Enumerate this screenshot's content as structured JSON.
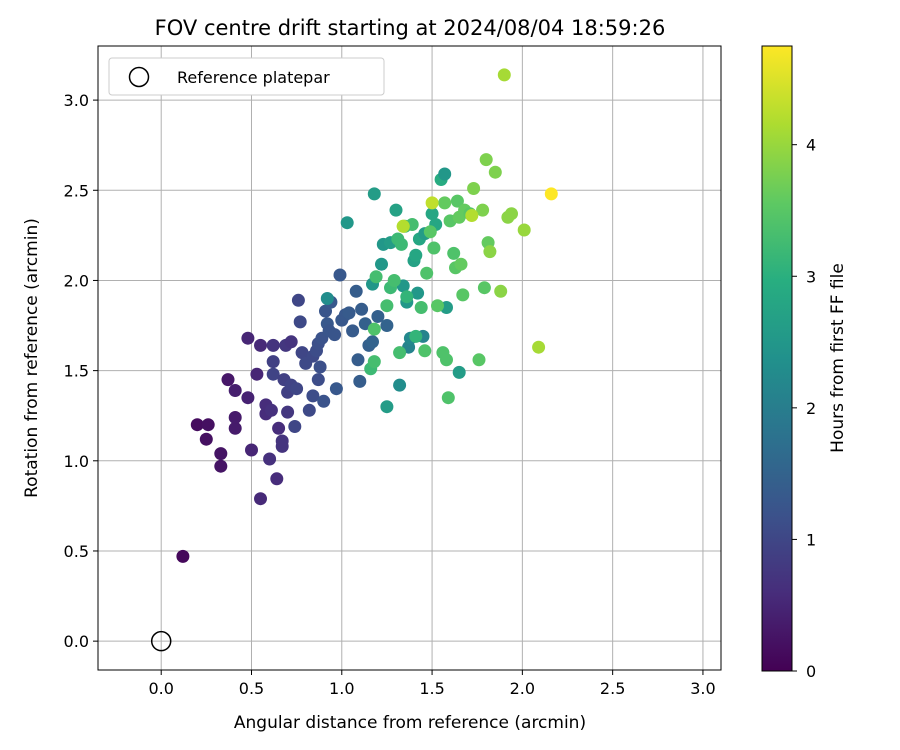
{
  "chart_data": {
    "type": "scatter",
    "title": "FOV centre drift starting at 2024/08/04 18:59:26",
    "xlabel": "Angular distance from reference (arcmin)",
    "ylabel": "Rotation from reference (arcmin)",
    "xlim": [
      -0.35,
      3.1
    ],
    "ylim": [
      -0.16,
      3.3
    ],
    "xticks": [
      "0.0",
      "0.5",
      "1.0",
      "1.5",
      "2.0",
      "2.5",
      "3.0"
    ],
    "yticks": [
      "0.0",
      "0.5",
      "1.0",
      "1.5",
      "2.0",
      "2.5",
      "3.0"
    ],
    "grid": true,
    "legend": {
      "label": "Reference platepar",
      "placement": "top-left"
    },
    "reference_point": [
      0.0,
      0.0
    ],
    "colorbar": {
      "label": "Hours from first FF file",
      "colormap": "viridis",
      "range": [
        0,
        4.75
      ],
      "ticks": [
        "0",
        "1",
        "2",
        "3",
        "4"
      ]
    },
    "points": [
      [
        0.12,
        0.47,
        0.1
      ],
      [
        0.2,
        1.2,
        0.15
      ],
      [
        0.25,
        1.12,
        0.2
      ],
      [
        0.26,
        1.2,
        0.2
      ],
      [
        0.33,
        0.97,
        0.25
      ],
      [
        0.33,
        1.04,
        0.25
      ],
      [
        0.37,
        1.45,
        0.3
      ],
      [
        0.41,
        1.18,
        0.35
      ],
      [
        0.41,
        1.24,
        0.35
      ],
      [
        0.41,
        1.39,
        0.4
      ],
      [
        0.48,
        1.68,
        0.5
      ],
      [
        0.48,
        1.35,
        0.45
      ],
      [
        0.5,
        1.06,
        0.5
      ],
      [
        0.53,
        1.48,
        0.5
      ],
      [
        0.55,
        0.79,
        0.55
      ],
      [
        0.55,
        1.64,
        0.55
      ],
      [
        0.58,
        1.26,
        0.6
      ],
      [
        0.58,
        1.31,
        0.6
      ],
      [
        0.6,
        1.01,
        0.65
      ],
      [
        0.61,
        1.28,
        0.65
      ],
      [
        0.62,
        1.64,
        0.7
      ],
      [
        0.64,
        0.9,
        0.6
      ],
      [
        0.65,
        1.18,
        0.6
      ],
      [
        0.67,
        1.08,
        0.7
      ],
      [
        0.67,
        1.11,
        0.7
      ],
      [
        0.69,
        1.64,
        0.75
      ],
      [
        0.7,
        1.27,
        0.75
      ],
      [
        0.72,
        1.66,
        0.7
      ],
      [
        0.62,
        1.55,
        0.9
      ],
      [
        0.62,
        1.48,
        0.95
      ],
      [
        0.68,
        1.45,
        0.9
      ],
      [
        0.7,
        1.38,
        0.9
      ],
      [
        0.72,
        1.42,
        0.95
      ],
      [
        0.74,
        1.19,
        1.0
      ],
      [
        0.75,
        1.4,
        1.0
      ],
      [
        0.76,
        1.89,
        1.0
      ],
      [
        0.77,
        1.77,
        1.05
      ],
      [
        0.78,
        1.6,
        1.0
      ],
      [
        0.8,
        1.54,
        1.05
      ],
      [
        0.82,
        1.28,
        1.05
      ],
      [
        0.84,
        1.36,
        1.1
      ],
      [
        0.84,
        1.58,
        1.05
      ],
      [
        0.86,
        1.61,
        1.1
      ],
      [
        0.87,
        1.45,
        1.1
      ],
      [
        0.87,
        1.65,
        1.15
      ],
      [
        0.88,
        1.52,
        1.15
      ],
      [
        0.89,
        1.68,
        1.2
      ],
      [
        0.9,
        1.33,
        1.2
      ],
      [
        0.91,
        1.83,
        1.25
      ],
      [
        0.92,
        1.76,
        1.3
      ],
      [
        0.93,
        1.72,
        1.25
      ],
      [
        0.94,
        1.88,
        1.3
      ],
      [
        0.96,
        1.7,
        1.25
      ],
      [
        0.97,
        1.4,
        1.3
      ],
      [
        0.99,
        2.03,
        1.3
      ],
      [
        1.0,
        1.78,
        1.3
      ],
      [
        1.02,
        1.81,
        1.3
      ],
      [
        1.04,
        1.82,
        1.35
      ],
      [
        1.06,
        1.72,
        1.35
      ],
      [
        1.08,
        1.94,
        1.4
      ],
      [
        1.09,
        1.56,
        1.4
      ],
      [
        1.1,
        1.44,
        1.4
      ],
      [
        1.11,
        1.84,
        1.4
      ],
      [
        1.13,
        1.76,
        1.45
      ],
      [
        1.15,
        1.64,
        1.45
      ],
      [
        1.17,
        1.66,
        1.5
      ],
      [
        1.2,
        1.8,
        1.45
      ],
      [
        1.25,
        1.75,
        1.5
      ],
      [
        1.03,
        2.32,
        2.5
      ],
      [
        0.92,
        1.9,
        2.3
      ],
      [
        1.17,
        1.98,
        2.5
      ],
      [
        1.18,
        2.48,
        2.6
      ],
      [
        1.22,
        2.09,
        2.5
      ],
      [
        1.23,
        2.2,
        2.5
      ],
      [
        1.25,
        1.3,
        2.6
      ],
      [
        1.27,
        2.21,
        2.6
      ],
      [
        1.3,
        2.39,
        2.7
      ],
      [
        1.32,
        1.42,
        2.3
      ],
      [
        1.34,
        1.97,
        2.5
      ],
      [
        1.36,
        1.88,
        2.5
      ],
      [
        1.37,
        1.63,
        2.1
      ],
      [
        1.38,
        1.68,
        2.2
      ],
      [
        1.4,
        2.11,
        2.7
      ],
      [
        1.41,
        2.14,
        2.8
      ],
      [
        1.42,
        1.93,
        2.5
      ],
      [
        1.43,
        2.23,
        2.8
      ],
      [
        1.45,
        1.69,
        2.1
      ],
      [
        1.46,
        2.26,
        2.6
      ],
      [
        1.5,
        2.37,
        2.8
      ],
      [
        1.52,
        2.31,
        2.8
      ],
      [
        1.55,
        2.56,
        2.9
      ],
      [
        1.57,
        2.59,
        2.5
      ],
      [
        1.58,
        1.85,
        2.6
      ],
      [
        1.65,
        1.49,
        2.6
      ],
      [
        1.16,
        1.51,
        3.2
      ],
      [
        1.18,
        1.55,
        3.3
      ],
      [
        1.18,
        1.73,
        3.4
      ],
      [
        1.19,
        2.02,
        3.3
      ],
      [
        1.25,
        1.86,
        3.3
      ],
      [
        1.27,
        1.96,
        3.2
      ],
      [
        1.29,
        2.0,
        3.3
      ],
      [
        1.31,
        2.23,
        3.2
      ],
      [
        1.32,
        1.6,
        3.3
      ],
      [
        1.33,
        2.2,
        3.2
      ],
      [
        1.35,
        2.3,
        3.2
      ],
      [
        1.36,
        1.91,
        3.1
      ],
      [
        1.39,
        2.31,
        3.3
      ],
      [
        1.41,
        1.69,
        3.1
      ],
      [
        1.44,
        1.85,
        3.3
      ],
      [
        1.46,
        1.61,
        3.4
      ],
      [
        1.47,
        2.04,
        3.4
      ],
      [
        1.49,
        2.27,
        3.5
      ],
      [
        1.51,
        2.18,
        3.4
      ],
      [
        1.53,
        1.86,
        3.5
      ],
      [
        1.56,
        1.6,
        3.4
      ],
      [
        1.57,
        2.43,
        3.6
      ],
      [
        1.58,
        1.56,
        3.4
      ],
      [
        1.59,
        1.35,
        3.4
      ],
      [
        1.6,
        2.33,
        3.5
      ],
      [
        1.62,
        2.15,
        3.4
      ],
      [
        1.63,
        2.07,
        3.5
      ],
      [
        1.64,
        2.44,
        3.5
      ],
      [
        1.65,
        2.35,
        3.6
      ],
      [
        1.66,
        2.09,
        3.6
      ],
      [
        1.67,
        1.92,
        3.5
      ],
      [
        1.68,
        2.39,
        3.6
      ],
      [
        1.71,
        2.37,
        3.5
      ],
      [
        1.73,
        2.51,
        3.8
      ],
      [
        1.76,
        1.56,
        3.5
      ],
      [
        1.78,
        2.39,
        3.8
      ],
      [
        1.79,
        1.96,
        3.5
      ],
      [
        1.8,
        2.67,
        3.8
      ],
      [
        1.81,
        2.21,
        3.6
      ],
      [
        1.82,
        2.16,
        3.9
      ],
      [
        1.85,
        2.6,
        3.8
      ],
      [
        1.88,
        1.94,
        3.9
      ],
      [
        1.9,
        3.14,
        4.1
      ],
      [
        1.92,
        2.35,
        3.9
      ],
      [
        1.94,
        2.37,
        3.9
      ],
      [
        2.01,
        2.28,
        4.0
      ],
      [
        2.09,
        1.63,
        4.1
      ],
      [
        1.34,
        2.3,
        4.2
      ],
      [
        1.34,
        2.3,
        4.2
      ],
      [
        1.5,
        2.43,
        4.3
      ],
      [
        1.72,
        2.36,
        4.2
      ],
      [
        2.16,
        2.48,
        4.75
      ]
    ]
  }
}
